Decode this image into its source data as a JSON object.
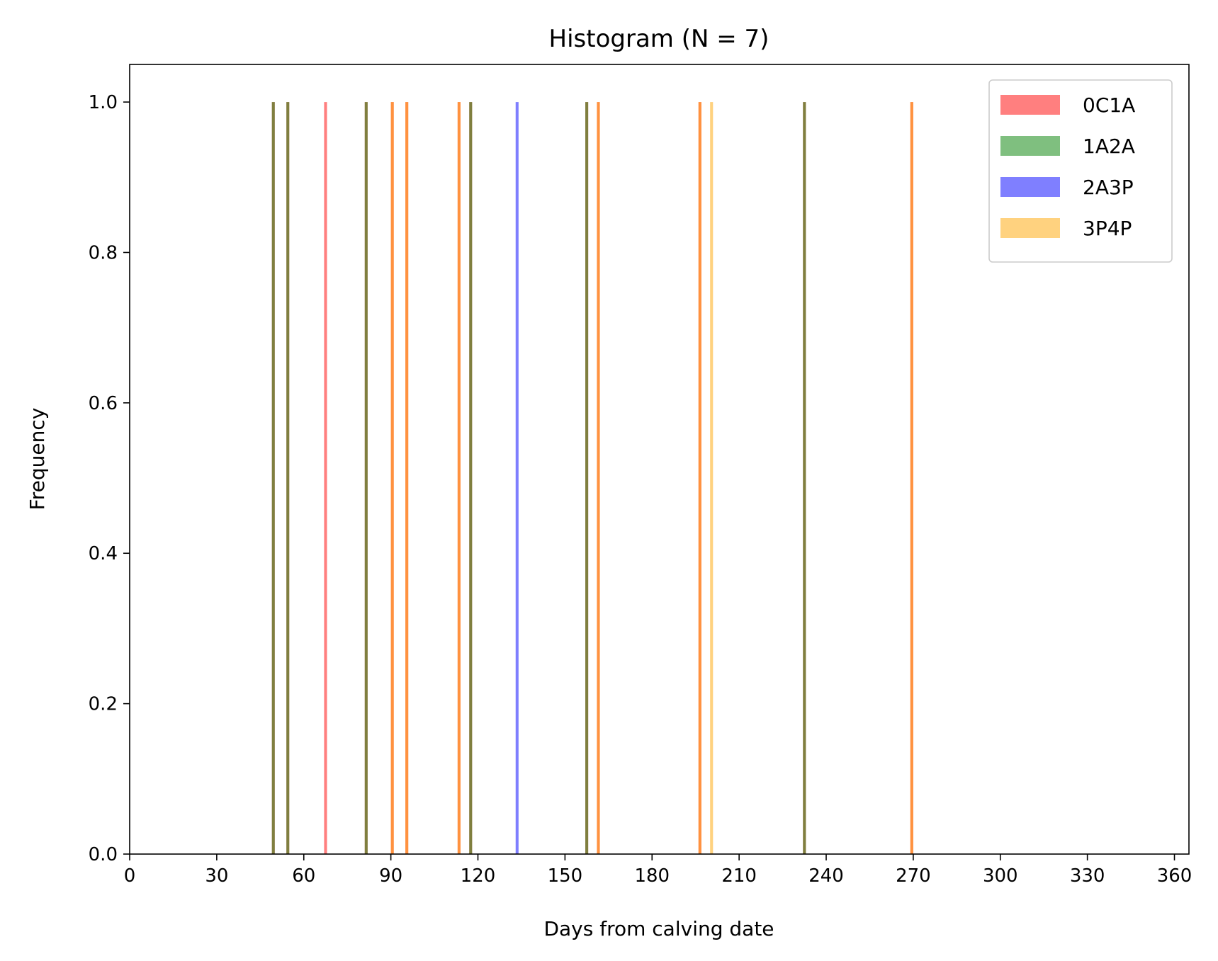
{
  "chart_data": {
    "type": "bar",
    "title": "Histogram (N = 7)",
    "xlabel": "Days from calving date",
    "ylabel": "Frequency",
    "xlim": [
      0,
      365
    ],
    "ylim": [
      0,
      1.05
    ],
    "xticks": [
      0,
      30,
      60,
      90,
      120,
      150,
      180,
      210,
      240,
      270,
      300,
      330,
      360
    ],
    "yticks": [
      "0.0",
      "0.2",
      "0.4",
      "0.6",
      "0.8",
      "1.0"
    ],
    "legend_position": "top-right",
    "series": [
      {
        "name": "0C1A",
        "color": "#ff0000",
        "x": [
          49,
          54,
          67,
          81,
          90,
          95,
          113,
          117,
          157,
          161,
          196,
          232,
          269
        ],
        "values": [
          1,
          1,
          1,
          1,
          1,
          1,
          1,
          1,
          1,
          1,
          1,
          1,
          1
        ]
      },
      {
        "name": "1A2A",
        "color": "#008000",
        "x": [
          49,
          54,
          81,
          117,
          157,
          232
        ],
        "values": [
          1,
          1,
          1,
          1,
          1,
          1
        ]
      },
      {
        "name": "2A3P",
        "color": "#0000ff",
        "x": [
          133
        ],
        "values": [
          1
        ]
      },
      {
        "name": "3P4P",
        "color": "#ffa500",
        "x": [
          90,
          95,
          113,
          161,
          196,
          200,
          269
        ],
        "values": [
          1,
          1,
          1,
          1,
          1,
          1,
          1
        ]
      }
    ]
  }
}
